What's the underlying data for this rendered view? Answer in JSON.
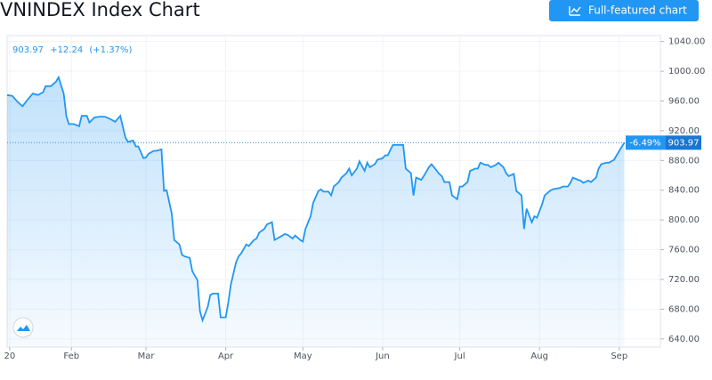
{
  "chart_data": {
    "type": "line",
    "title": "VNINDEX Index Chart",
    "button_label": "Full-featured chart",
    "status": {
      "change": "+12.24",
      "change_pct": "(+1.37%)"
    },
    "last_change": "-6.49%",
    "color": "#2196f3",
    "x": [
      6,
      8,
      10,
      12,
      14,
      16,
      18,
      20,
      21,
      23,
      25,
      26,
      28,
      29,
      30,
      32,
      34,
      35,
      37,
      38,
      40,
      42,
      44,
      46,
      48,
      50,
      52,
      53,
      55,
      56,
      57,
      59,
      60,
      61,
      63,
      64,
      66,
      67,
      68,
      70,
      71,
      73,
      74,
      75,
      77,
      78,
      80,
      81,
      82,
      84,
      85,
      86,
      88,
      89,
      91,
      92,
      93,
      95,
      96,
      97,
      99,
      100,
      102,
      103,
      104,
      106,
      107,
      109,
      110,
      111,
      113,
      114,
      115,
      117,
      118,
      120,
      121,
      122,
      124,
      125,
      127,
      128,
      129,
      131,
      132,
      133,
      135,
      136,
      138,
      139,
      140,
      142,
      143,
      145,
      146,
      147,
      149,
      150,
      152,
      153,
      154,
      156,
      158,
      160,
      161,
      163,
      164,
      165,
      167,
      168,
      170,
      171,
      172,
      174,
      175,
      176,
      178,
      179,
      181,
      182,
      183,
      185,
      186,
      188,
      189,
      190,
      192,
      193,
      194,
      196,
      197,
      199,
      200,
      201,
      203,
      204,
      206,
      207,
      208,
      210,
      211,
      212,
      214,
      215,
      217,
      218,
      219,
      221,
      222,
      224,
      225,
      226,
      228,
      229,
      230,
      232,
      233,
      235,
      236,
      237,
      239,
      240,
      242,
      243,
      244,
      246
    ],
    "values": [
      968,
      967,
      959,
      953,
      962,
      970,
      968,
      972,
      980,
      980,
      986,
      992,
      970,
      940,
      929,
      929,
      926,
      940,
      940,
      931,
      938,
      939,
      939,
      936,
      932,
      940,
      911,
      905,
      907,
      899,
      899,
      883,
      884,
      889,
      893,
      893,
      895,
      839,
      840,
      809,
      773,
      767,
      753,
      751,
      749,
      731,
      719,
      677,
      665,
      683,
      699,
      701,
      701,
      669,
      669,
      689,
      713,
      743,
      751,
      755,
      767,
      765,
      773,
      775,
      783,
      788,
      794,
      797,
      773,
      775,
      779,
      781,
      780,
      775,
      779,
      773,
      771,
      788,
      805,
      823,
      839,
      841,
      838,
      838,
      833,
      845,
      851,
      857,
      863,
      869,
      860,
      869,
      879,
      866,
      877,
      871,
      875,
      881,
      883,
      887,
      887,
      901,
      901,
      901,
      869,
      863,
      833,
      857,
      854,
      859,
      871,
      875,
      871,
      862,
      859,
      851,
      851,
      833,
      828,
      845,
      845,
      851,
      866,
      869,
      869,
      877,
      874,
      874,
      871,
      874,
      877,
      871,
      863,
      859,
      862,
      839,
      833,
      788,
      815,
      797,
      805,
      803,
      821,
      833,
      839,
      841,
      842,
      843,
      845,
      845,
      850,
      857,
      854,
      853,
      850,
      853,
      851,
      857,
      869,
      875,
      877,
      877,
      881,
      887,
      893,
      903.97
    ],
    "xlim": [
      6,
      260
    ],
    "ylim": [
      629,
      1048
    ],
    "xticks": [
      {
        "value": 7,
        "label": "20"
      },
      {
        "value": 31,
        "label": "Feb"
      },
      {
        "value": 60,
        "label": "Mar"
      },
      {
        "value": 91,
        "label": "Apr"
      },
      {
        "value": 121,
        "label": "May"
      },
      {
        "value": 152,
        "label": "Jun"
      },
      {
        "value": 182,
        "label": "Jul"
      },
      {
        "value": 213,
        "label": "Aug"
      },
      {
        "value": 244,
        "label": "Sep"
      }
    ],
    "yticks": [
      {
        "value": 640,
        "label": "640.00"
      },
      {
        "value": 680,
        "label": "680.00"
      },
      {
        "value": 720,
        "label": "720.00"
      },
      {
        "value": 760,
        "label": "760.00"
      },
      {
        "value": 800,
        "label": "800.00"
      },
      {
        "value": 840,
        "label": "840.00"
      },
      {
        "value": 880,
        "label": "880.00"
      },
      {
        "value": 920,
        "label": "920.00"
      },
      {
        "value": 960,
        "label": "960.00"
      },
      {
        "value": 1000,
        "label": "1000.00"
      },
      {
        "value": 1040,
        "label": "1040.00"
      }
    ],
    "grid": true
  }
}
